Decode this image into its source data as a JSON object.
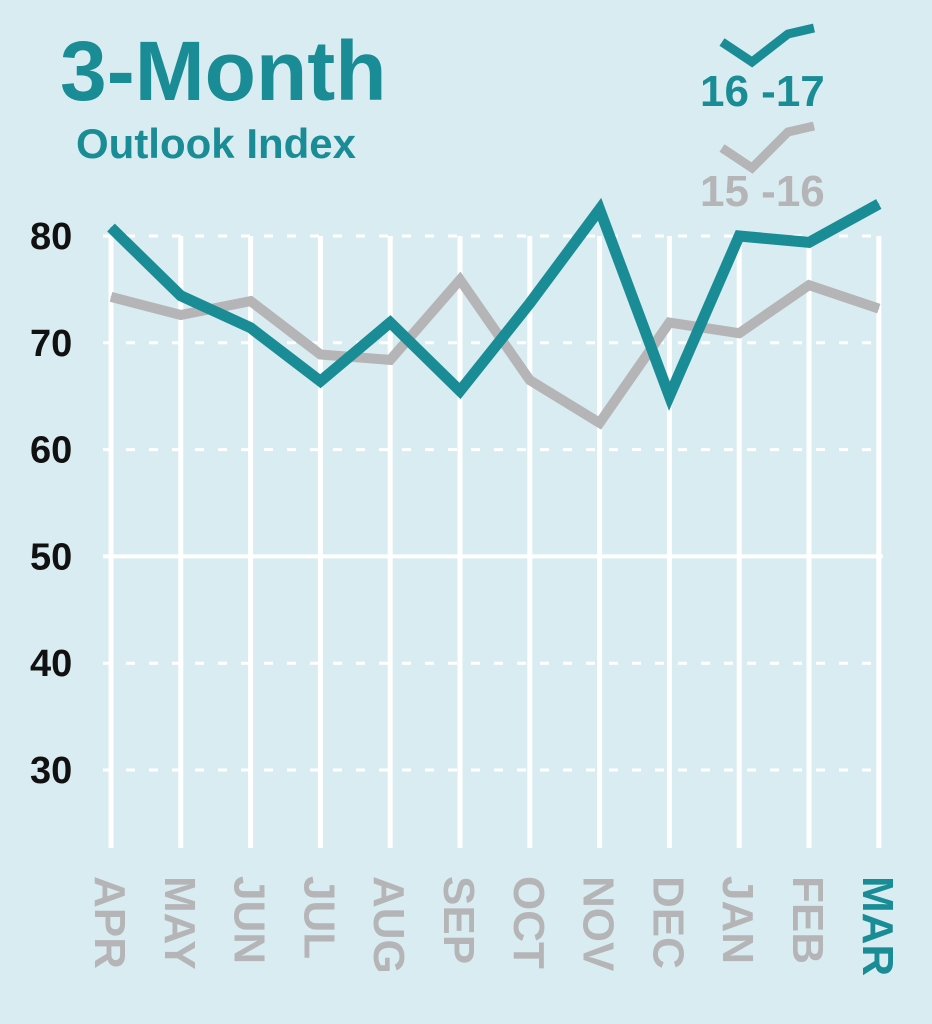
{
  "colors": {
    "background": "#d9ecf1",
    "grid": "#ffffff",
    "teal": "#1a8c95",
    "gray": "#b5b5b7",
    "tick": "#111111"
  },
  "chart_data": {
    "type": "line",
    "title": "3-Month",
    "subtitle": "Outlook Index",
    "categories": [
      "APR",
      "MAY",
      "JUN",
      "JUL",
      "AUG",
      "SEP",
      "OCT",
      "NOV",
      "DEC",
      "JAN",
      "FEB",
      "MAR"
    ],
    "highlight_category": "MAR",
    "yticks": [
      30,
      40,
      50,
      60,
      70,
      80
    ],
    "ylim": [
      30,
      80
    ],
    "grid": true,
    "legend_position": "top-right",
    "series": [
      {
        "name": "15 -16",
        "color": "#b5b5b7",
        "values": [
          74.3,
          72.6,
          73.9,
          68.9,
          68.4,
          75.9,
          66.5,
          62.5,
          71.9,
          70.9,
          75.4,
          73.2
        ]
      },
      {
        "name": "16 -17",
        "color": "#1a8c95",
        "values": [
          80.8,
          74.4,
          71.4,
          66.4,
          71.9,
          65.5,
          73.7,
          82.5,
          65.0,
          80.0,
          79.4,
          83.0
        ]
      }
    ]
  }
}
